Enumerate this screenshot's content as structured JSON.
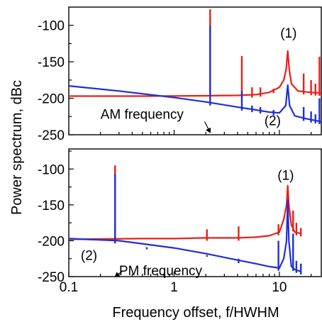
{
  "chart_data": {
    "ylabel": "Power spectrum, dBc",
    "xlabel": "Frequency offset, f/HWHM",
    "x_scale": "log",
    "xlim": [
      0.1,
      25
    ],
    "x_ticks": [
      {
        "value": 0.1,
        "label": "0.1"
      },
      {
        "value": 1,
        "label": "1"
      },
      {
        "value": 10,
        "label": "10"
      }
    ],
    "panels": [
      {
        "type": "line",
        "ylim": [
          -250,
          -75
        ],
        "y_ticks": [
          {
            "value": -100,
            "label": "-100"
          },
          {
            "value": -150,
            "label": "-150"
          },
          {
            "value": -200,
            "label": "-200"
          },
          {
            "value": -250,
            "label": "-250"
          }
        ],
        "series": [
          {
            "color": "#e8201a",
            "baseline": [
              [
                0.1,
                -197
              ],
              [
                0.5,
                -197
              ],
              [
                1,
                -196.8
              ],
              [
                2,
                -196.5
              ],
              [
                4,
                -196
              ],
              [
                6,
                -195
              ],
              [
                8,
                -192
              ],
              [
                10,
                -185
              ],
              [
                11,
                -175
              ],
              [
                11.6,
                -160
              ],
              [
                12,
                -135
              ],
              [
                12.4,
                -160
              ],
              [
                13,
                -180
              ],
              [
                15,
                -190
              ],
              [
                20,
                -192
              ],
              [
                25,
                -193
              ]
            ],
            "spikes": [
              [
                2.2,
                -78
              ],
              [
                4.4,
                -142
              ],
              [
                5.5,
                -185
              ],
              [
                6.6,
                -185
              ],
              [
                8.8,
                -187
              ],
              [
                17,
                -166
              ],
              [
                20,
                -175
              ],
              [
                22,
                -180
              ],
              [
                24,
                -143
              ]
            ]
          },
          {
            "color": "#1f2fd6",
            "baseline": [
              [
                0.1,
                -183
              ],
              [
                0.3,
                -190
              ],
              [
                1,
                -199
              ],
              [
                2,
                -205
              ],
              [
                4,
                -212
              ],
              [
                6,
                -216
              ],
              [
                8,
                -219
              ],
              [
                10,
                -220
              ],
              [
                11.5,
                -210
              ],
              [
                12,
                -182
              ],
              [
                12.5,
                -210
              ],
              [
                14,
                -224
              ],
              [
                18,
                -228
              ],
              [
                25,
                -232
              ]
            ],
            "spikes": [
              [
                2.2,
                -100
              ],
              [
                4.4,
                -190
              ],
              [
                5.5,
                -210
              ],
              [
                6.6,
                -212
              ],
              [
                8.8,
                -216
              ],
              [
                17,
                -212
              ],
              [
                20,
                -218
              ],
              [
                22,
                -222
              ],
              [
                24,
                -200
              ]
            ]
          }
        ],
        "annotations": [
          {
            "text": "(1)",
            "x": 10.2,
            "y": -117
          },
          {
            "text": "(2)",
            "x": 7.2,
            "y": -237
          },
          {
            "text": "AM frequency",
            "x": 0.2,
            "y": -228
          }
        ],
        "arrow": {
          "from": [
            1.95,
            -232
          ],
          "to": [
            2.2,
            -247
          ]
        }
      },
      {
        "type": "line",
        "ylim": [
          -250,
          -72
        ],
        "y_ticks": [
          {
            "value": -100,
            "label": "-100"
          },
          {
            "value": -150,
            "label": "-150"
          },
          {
            "value": -200,
            "label": "-200"
          },
          {
            "value": -250,
            "label": "-250"
          }
        ],
        "series": [
          {
            "color": "#e8201a",
            "baseline": [
              [
                0.1,
                -198
              ],
              [
                0.5,
                -197
              ],
              [
                1,
                -197
              ],
              [
                2,
                -196
              ],
              [
                4,
                -196
              ],
              [
                6,
                -195
              ],
              [
                8,
                -193
              ],
              [
                10,
                -188
              ],
              [
                11,
                -170
              ],
              [
                11.7,
                -150
              ],
              [
                12,
                -123
              ],
              [
                12.3,
                -150
              ],
              [
                13,
                -178
              ],
              [
                14,
                -188
              ],
              [
                16,
                -190
              ]
            ],
            "spikes": [
              [
                0.275,
                -95
              ],
              [
                0.55,
                -201
              ],
              [
                2.05,
                -184
              ],
              [
                4.1,
                -180
              ],
              [
                9.8,
                -177
              ],
              [
                13.5,
                -158
              ],
              [
                14.5,
                -175
              ],
              [
                16,
                -182
              ]
            ]
          },
          {
            "color": "#1f2fd6",
            "baseline": [
              [
                0.1,
                -197
              ],
              [
                0.3,
                -200
              ],
              [
                1,
                -210
              ],
              [
                2,
                -218
              ],
              [
                4,
                -227
              ],
              [
                6,
                -232
              ],
              [
                8,
                -236
              ],
              [
                10,
                -238
              ],
              [
                11,
                -225
              ],
              [
                11.7,
                -200
              ],
              [
                12,
                -143
              ],
              [
                12.3,
                -200
              ],
              [
                13,
                -236
              ],
              [
                14,
                -240
              ],
              [
                16,
                -243
              ]
            ],
            "spikes": [
              [
                0.275,
                -107
              ],
              [
                0.55,
                -212
              ],
              [
                2.05,
                -220
              ],
              [
                4.1,
                -225
              ],
              [
                9.8,
                -200
              ],
              [
                13.5,
                -190
              ],
              [
                14.5,
                -228
              ],
              [
                16,
                -232
              ]
            ]
          }
        ],
        "annotations": [
          {
            "text": "(1)",
            "x": 9.6,
            "y": -115
          },
          {
            "text": "(2)",
            "x": 0.13,
            "y": -227
          },
          {
            "text": "PM frequency",
            "x": 0.3,
            "y": -248
          }
        ],
        "arrow": {
          "from": [
            0.32,
            -243
          ],
          "to": [
            0.275,
            -250
          ]
        }
      }
    ]
  }
}
